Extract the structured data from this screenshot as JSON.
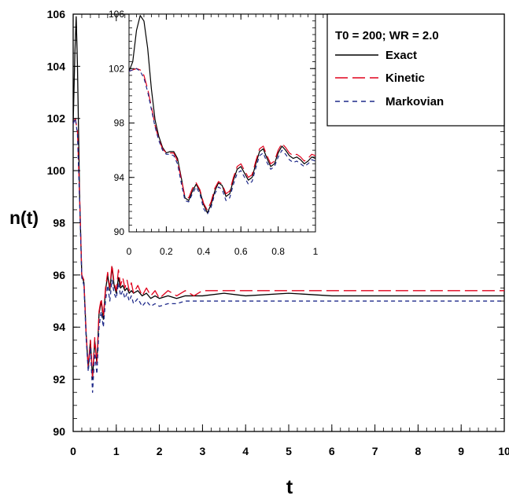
{
  "chart_data": [
    {
      "type": "line",
      "title": "",
      "xlabel": "t",
      "ylabel": "n(t)",
      "xlim": [
        0,
        10
      ],
      "ylim": [
        90,
        106
      ],
      "x_ticks": [
        "0",
        "1",
        "2",
        "3",
        "4",
        "5",
        "6",
        "7",
        "8",
        "9",
        "10"
      ],
      "y_ticks": [
        "90",
        "92",
        "94",
        "96",
        "98",
        "100",
        "102",
        "104",
        "106"
      ],
      "grid": false,
      "legend": {
        "position": "top-right",
        "title": "T0 = 200; WR = 2.0",
        "entries": [
          "Exact",
          "Kinetic",
          "Markovian"
        ]
      },
      "series": [
        {
          "name": "Exact",
          "color": "#000000",
          "dash": "solid",
          "x": [
            0,
            0.04,
            0.07,
            0.1,
            0.15,
            0.2,
            0.25,
            0.3,
            0.35,
            0.4,
            0.45,
            0.5,
            0.55,
            0.6,
            0.65,
            0.7,
            0.75,
            0.8,
            0.85,
            0.9,
            0.95,
            1.0,
            1.05,
            1.1,
            1.15,
            1.2,
            1.25,
            1.3,
            1.35,
            1.4,
            1.5,
            1.6,
            1.7,
            1.8,
            1.9,
            2.0,
            2.2,
            2.4,
            2.6,
            2.8,
            3.0,
            3.5,
            4.0,
            5.0,
            6.0,
            7.0,
            8.0,
            9.0,
            10.0
          ],
          "y": [
            101.8,
            104.5,
            105.9,
            104.0,
            99.0,
            96.0,
            95.7,
            93.8,
            92.4,
            93.5,
            92.0,
            93.5,
            92.6,
            94.5,
            95.0,
            94.3,
            95.4,
            96.0,
            95.4,
            96.3,
            95.6,
            95.3,
            95.9,
            95.5,
            95.6,
            95.4,
            95.5,
            95.3,
            95.4,
            95.3,
            95.4,
            95.2,
            95.3,
            95.1,
            95.2,
            95.1,
            95.2,
            95.1,
            95.2,
            95.2,
            95.2,
            95.3,
            95.2,
            95.3,
            95.2,
            95.2,
            95.2,
            95.2,
            95.2
          ]
        },
        {
          "name": "Kinetic",
          "color": "#e0001b",
          "dash": "long-dash",
          "x": [
            0,
            0.05,
            0.1,
            0.15,
            0.2,
            0.25,
            0.3,
            0.35,
            0.4,
            0.45,
            0.5,
            0.55,
            0.6,
            0.65,
            0.7,
            0.75,
            0.8,
            0.85,
            0.9,
            0.95,
            1.0,
            1.05,
            1.1,
            1.15,
            1.2,
            1.25,
            1.3,
            1.35,
            1.4,
            1.5,
            1.6,
            1.7,
            1.8,
            1.9,
            2.0,
            2.2,
            2.4,
            2.6,
            2.8,
            3.0,
            3.5,
            4.0,
            5.0,
            6.0,
            7.0,
            8.0,
            9.0,
            10.0
          ],
          "y": [
            101.8,
            102.0,
            101.5,
            99.0,
            96.0,
            95.8,
            93.8,
            92.5,
            93.5,
            92.1,
            93.6,
            92.6,
            94.6,
            95.1,
            94.4,
            95.5,
            96.1,
            95.5,
            96.4,
            95.7,
            95.4,
            96.2,
            95.6,
            95.9,
            95.5,
            95.8,
            95.4,
            95.7,
            95.3,
            95.6,
            95.2,
            95.5,
            95.2,
            95.4,
            95.1,
            95.4,
            95.2,
            95.4,
            95.2,
            95.4,
            95.4,
            95.4,
            95.4,
            95.4,
            95.4,
            95.4,
            95.4,
            95.4
          ]
        },
        {
          "name": "Markovian",
          "color": "#1f2a8a",
          "dash": "short-dash",
          "x": [
            0,
            0.05,
            0.1,
            0.15,
            0.2,
            0.25,
            0.3,
            0.35,
            0.4,
            0.45,
            0.5,
            0.55,
            0.6,
            0.65,
            0.7,
            0.75,
            0.8,
            0.85,
            0.9,
            0.95,
            1.0,
            1.05,
            1.1,
            1.15,
            1.2,
            1.25,
            1.3,
            1.35,
            1.4,
            1.5,
            1.6,
            1.7,
            1.8,
            1.9,
            2.0,
            2.2,
            2.4,
            2.6,
            2.8,
            3.0,
            3.5,
            4.0,
            5.0,
            6.0,
            7.0,
            8.0,
            9.0,
            10.0
          ],
          "y": [
            101.8,
            102.0,
            101.4,
            98.8,
            95.9,
            95.6,
            93.6,
            92.3,
            93.2,
            91.5,
            93.0,
            92.2,
            94.0,
            94.6,
            94.0,
            95.0,
            95.6,
            95.0,
            95.8,
            95.3,
            95.1,
            95.7,
            95.2,
            95.4,
            95.1,
            95.3,
            95.0,
            95.2,
            94.9,
            95.1,
            94.8,
            95.0,
            94.8,
            94.9,
            94.8,
            94.9,
            94.9,
            95.0,
            95.0,
            95.0,
            95.0,
            95.0,
            95.0,
            95.0,
            95.0,
            95.0,
            95.0,
            95.0
          ]
        }
      ]
    },
    {
      "type": "line",
      "title": "",
      "xlabel": "",
      "ylabel": "",
      "xlim": [
        0,
        1
      ],
      "ylim": [
        90,
        106
      ],
      "x_ticks": [
        "0",
        "0.2",
        "0.4",
        "0.6",
        "0.8",
        "1"
      ],
      "y_ticks": [
        "90",
        "94",
        "98",
        "102",
        "106"
      ],
      "grid": false,
      "series": [
        {
          "name": "Exact",
          "color": "#000000",
          "dash": "solid",
          "x": [
            0,
            0.02,
            0.04,
            0.06,
            0.08,
            0.1,
            0.12,
            0.14,
            0.16,
            0.18,
            0.2,
            0.22,
            0.24,
            0.26,
            0.28,
            0.3,
            0.32,
            0.34,
            0.36,
            0.38,
            0.4,
            0.42,
            0.44,
            0.46,
            0.48,
            0.5,
            0.52,
            0.54,
            0.56,
            0.58,
            0.6,
            0.62,
            0.64,
            0.66,
            0.68,
            0.7,
            0.72,
            0.74,
            0.76,
            0.78,
            0.8,
            0.82,
            0.84,
            0.86,
            0.88,
            0.9,
            0.92,
            0.94,
            0.96,
            0.98,
            1.0
          ],
          "y": [
            101.8,
            102.5,
            104.8,
            105.9,
            105.5,
            103.5,
            100.5,
            98.2,
            97.0,
            96.2,
            95.8,
            95.9,
            95.9,
            95.4,
            94.0,
            92.5,
            92.3,
            93.0,
            93.5,
            93.0,
            92.0,
            91.4,
            92.0,
            93.0,
            93.6,
            93.4,
            92.6,
            92.8,
            93.8,
            94.6,
            94.8,
            94.3,
            93.8,
            94.0,
            95.0,
            95.9,
            96.1,
            95.4,
            94.8,
            95.0,
            95.8,
            96.3,
            96.0,
            95.6,
            95.4,
            95.5,
            95.3,
            95.0,
            95.2,
            95.5,
            95.4
          ]
        },
        {
          "name": "Kinetic",
          "color": "#e0001b",
          "dash": "long-dash",
          "x": [
            0,
            0.02,
            0.04,
            0.06,
            0.08,
            0.1,
            0.12,
            0.14,
            0.16,
            0.18,
            0.2,
            0.22,
            0.24,
            0.26,
            0.28,
            0.3,
            0.32,
            0.34,
            0.36,
            0.38,
            0.4,
            0.42,
            0.44,
            0.46,
            0.48,
            0.5,
            0.52,
            0.54,
            0.56,
            0.58,
            0.6,
            0.62,
            0.64,
            0.66,
            0.68,
            0.7,
            0.72,
            0.74,
            0.76,
            0.78,
            0.8,
            0.82,
            0.84,
            0.86,
            0.88,
            0.9,
            0.92,
            0.94,
            0.96,
            0.98,
            1.0
          ],
          "y": [
            101.8,
            101.9,
            102.0,
            101.9,
            101.5,
            100.5,
            99.2,
            97.8,
            96.8,
            96.1,
            95.8,
            95.8,
            95.8,
            95.2,
            93.9,
            92.6,
            92.5,
            93.2,
            93.6,
            93.1,
            92.1,
            91.6,
            92.2,
            93.2,
            93.7,
            93.5,
            92.8,
            93.0,
            94.0,
            94.8,
            95.0,
            94.5,
            94.0,
            94.2,
            95.2,
            96.1,
            96.3,
            95.6,
            95.0,
            95.2,
            96.0,
            96.5,
            96.2,
            95.8,
            95.6,
            95.7,
            95.5,
            95.2,
            95.4,
            95.7,
            95.6
          ]
        },
        {
          "name": "Markovian",
          "color": "#1f2a8a",
          "dash": "short-dash",
          "x": [
            0,
            0.02,
            0.04,
            0.06,
            0.08,
            0.1,
            0.12,
            0.14,
            0.16,
            0.18,
            0.2,
            0.22,
            0.24,
            0.26,
            0.28,
            0.3,
            0.32,
            0.34,
            0.36,
            0.38,
            0.4,
            0.42,
            0.44,
            0.46,
            0.48,
            0.5,
            0.52,
            0.54,
            0.56,
            0.58,
            0.6,
            0.62,
            0.64,
            0.66,
            0.68,
            0.7,
            0.72,
            0.74,
            0.76,
            0.78,
            0.8,
            0.82,
            0.84,
            0.86,
            0.88,
            0.9,
            0.92,
            0.94,
            0.96,
            0.98,
            1.0
          ],
          "y": [
            101.8,
            101.9,
            102.0,
            101.8,
            101.3,
            100.3,
            99.0,
            97.7,
            96.7,
            96.0,
            95.7,
            95.7,
            95.6,
            95.0,
            93.6,
            92.3,
            92.2,
            92.8,
            93.3,
            92.8,
            91.7,
            91.3,
            91.8,
            92.8,
            93.3,
            93.1,
            92.3,
            92.5,
            93.5,
            94.3,
            94.5,
            94.0,
            93.5,
            93.7,
            94.7,
            95.6,
            95.8,
            95.1,
            94.6,
            94.8,
            95.5,
            96.0,
            95.7,
            95.3,
            95.1,
            95.2,
            95.0,
            94.8,
            95.0,
            95.3,
            95.2
          ]
        }
      ]
    }
  ]
}
